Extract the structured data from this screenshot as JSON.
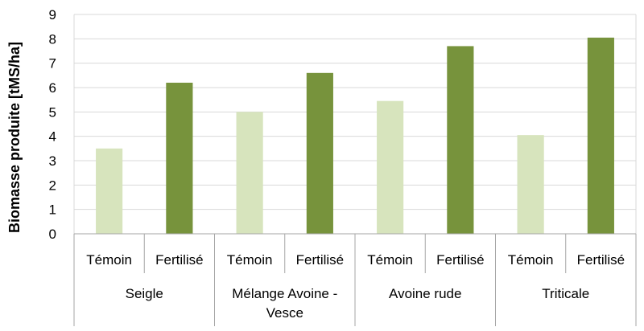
{
  "chart_data": {
    "type": "bar",
    "ylabel": "Biomasse produite [tMS/ha]",
    "ylim": [
      0,
      9
    ],
    "yticks": [
      0,
      1,
      2,
      3,
      4,
      5,
      6,
      7,
      8,
      9
    ],
    "grid": true,
    "groups": [
      {
        "name": "Seigle",
        "name_lines": [
          "Seigle"
        ],
        "bars": [
          {
            "label": "Témoin",
            "value": 3.5,
            "color": "#d7e4bd"
          },
          {
            "label": "Fertilisé",
            "value": 6.2,
            "color": "#77933c"
          }
        ]
      },
      {
        "name": "Mélange Avoine - Vesce",
        "name_lines": [
          "Mélange Avoine -",
          "Vesce"
        ],
        "bars": [
          {
            "label": "Témoin",
            "value": 5.0,
            "color": "#d7e4bd"
          },
          {
            "label": "Fertilisé",
            "value": 6.6,
            "color": "#77933c"
          }
        ]
      },
      {
        "name": "Avoine rude",
        "name_lines": [
          "Avoine rude"
        ],
        "bars": [
          {
            "label": "Témoin",
            "value": 5.45,
            "color": "#d7e4bd"
          },
          {
            "label": "Fertilisé",
            "value": 7.7,
            "color": "#77933c"
          }
        ]
      },
      {
        "name": "Triticale",
        "name_lines": [
          "Triticale"
        ],
        "bars": [
          {
            "label": "Témoin",
            "value": 4.05,
            "color": "#d7e4bd"
          },
          {
            "label": "Fertilisé",
            "value": 8.05,
            "color": "#77933c"
          }
        ]
      }
    ]
  }
}
